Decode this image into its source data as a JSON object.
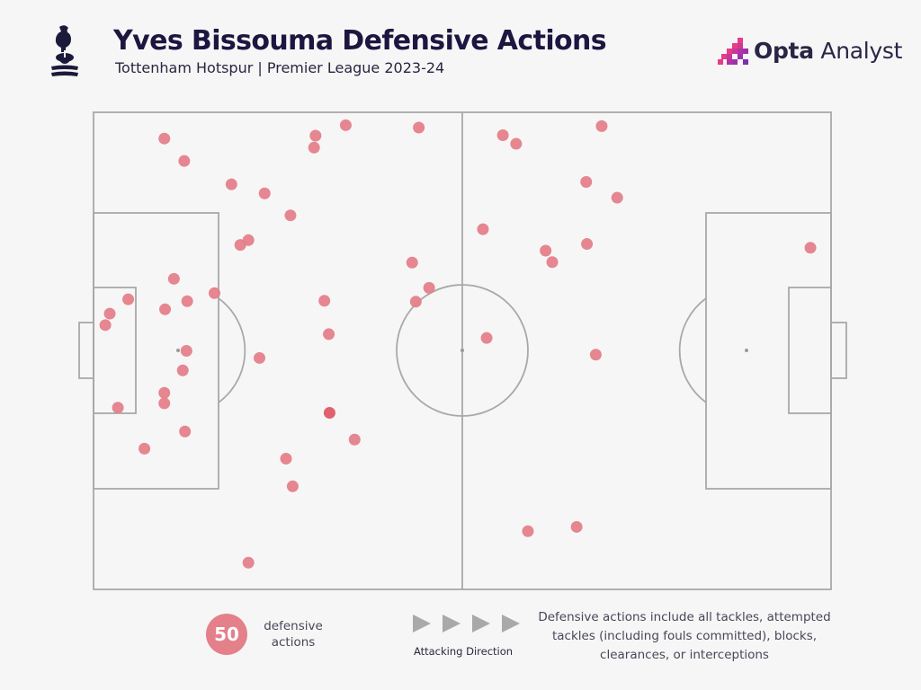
{
  "header": {
    "title": "Yves Bissouma Defensive Actions",
    "subtitle": "Tottenham Hotspur | Premier League 2023-24"
  },
  "brand": {
    "name_bold": "Opta",
    "name_light": " Analyst"
  },
  "crest": {
    "icon": "tottenham-cockerel-crest"
  },
  "footer": {
    "count": "50",
    "count_label": "defensive actions",
    "direction_label": "Attacking Direction",
    "note": "Defensive actions include all tackles, attempted tackles (including fouls committed), blocks, clearances, or interceptions"
  },
  "colors": {
    "marker": "#e4808a",
    "marker_highlight": "#e05866",
    "pitch_line": "#a9a9a9",
    "title": "#1c1640",
    "brand_pink": "#e63d86",
    "brand_purple": "#7b2fb5"
  },
  "chart_data": {
    "type": "scatter",
    "pitch": {
      "length": 100,
      "width": 100,
      "attacking_direction": "left-to-right"
    },
    "x_range": [
      0,
      100
    ],
    "y_range": [
      0,
      100
    ],
    "series": [
      {
        "values": [
          {
            "x": 9.6,
            "y": 5.5
          },
          {
            "x": 12.3,
            "y": 10.2
          },
          {
            "x": 18.7,
            "y": 15.1
          },
          {
            "x": 30.1,
            "y": 4.9
          },
          {
            "x": 21.0,
            "y": 26.8
          },
          {
            "x": 23.2,
            "y": 17.0
          },
          {
            "x": 29.9,
            "y": 7.4
          },
          {
            "x": 34.2,
            "y": 2.7
          },
          {
            "x": 44.1,
            "y": 3.2
          },
          {
            "x": 26.7,
            "y": 21.6
          },
          {
            "x": 19.9,
            "y": 27.8
          },
          {
            "x": 16.4,
            "y": 37.9
          },
          {
            "x": 4.7,
            "y": 39.2
          },
          {
            "x": 2.2,
            "y": 42.2
          },
          {
            "x": 1.6,
            "y": 44.6
          },
          {
            "x": 9.7,
            "y": 41.3
          },
          {
            "x": 12.7,
            "y": 39.6
          },
          {
            "x": 10.9,
            "y": 34.9
          },
          {
            "x": 12.6,
            "y": 50.0
          },
          {
            "x": 12.1,
            "y": 54.1
          },
          {
            "x": 9.6,
            "y": 58.8
          },
          {
            "x": 9.6,
            "y": 61.0
          },
          {
            "x": 3.3,
            "y": 61.9
          },
          {
            "x": 12.4,
            "y": 66.9
          },
          {
            "x": 6.9,
            "y": 70.5
          },
          {
            "x": 22.5,
            "y": 51.5
          },
          {
            "x": 31.3,
            "y": 39.5
          },
          {
            "x": 31.9,
            "y": 46.5
          },
          {
            "x": 32.0,
            "y": 63.0
          },
          {
            "x": 35.4,
            "y": 68.6
          },
          {
            "x": 26.1,
            "y": 72.6
          },
          {
            "x": 27.0,
            "y": 78.4
          },
          {
            "x": 21.0,
            "y": 94.4
          },
          {
            "x": 43.2,
            "y": 31.5
          },
          {
            "x": 45.5,
            "y": 36.8
          },
          {
            "x": 43.7,
            "y": 39.7
          },
          {
            "x": 55.5,
            "y": 4.8
          },
          {
            "x": 57.3,
            "y": 6.6
          },
          {
            "x": 68.9,
            "y": 2.9
          },
          {
            "x": 66.8,
            "y": 14.6
          },
          {
            "x": 71.0,
            "y": 17.9
          },
          {
            "x": 52.8,
            "y": 24.5
          },
          {
            "x": 61.3,
            "y": 29.0
          },
          {
            "x": 62.2,
            "y": 31.4
          },
          {
            "x": 66.9,
            "y": 27.6
          },
          {
            "x": 53.3,
            "y": 47.3
          },
          {
            "x": 68.1,
            "y": 50.8
          },
          {
            "x": 58.9,
            "y": 87.8
          },
          {
            "x": 65.5,
            "y": 86.9
          },
          {
            "x": 97.2,
            "y": 28.4
          }
        ]
      }
    ]
  }
}
